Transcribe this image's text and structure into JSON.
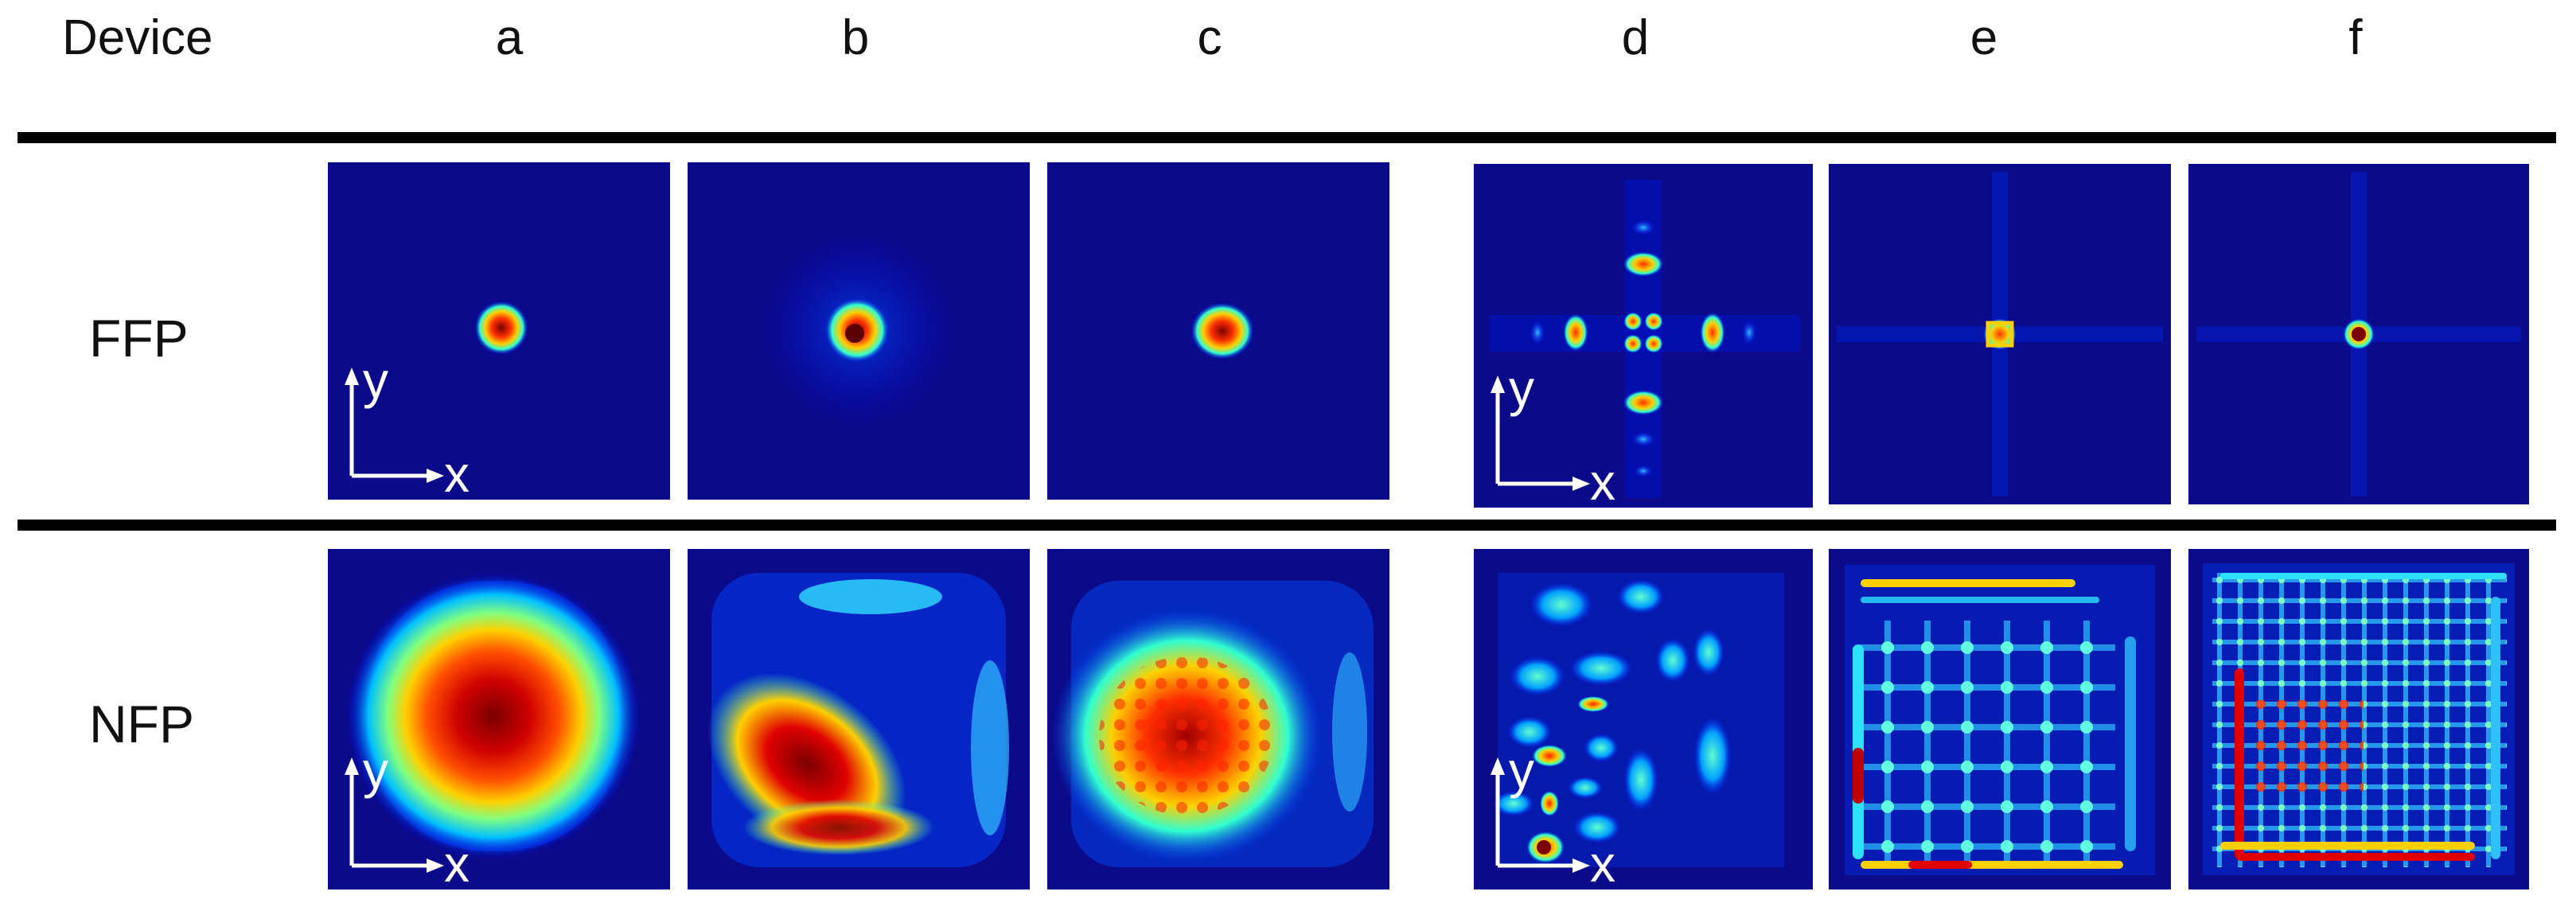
{
  "header": {
    "device_label": "Device",
    "columns": [
      "a",
      "b",
      "c",
      "d",
      "e",
      "f"
    ]
  },
  "rows": [
    {
      "label": "FFP",
      "axis": {
        "y": "y",
        "x": "x"
      }
    },
    {
      "label": "NFP",
      "axis": {
        "y": "y",
        "x": "x"
      }
    }
  ],
  "colormap": {
    "name": "jet",
    "background": "#0a0a8a",
    "stops": [
      "#00008f",
      "#0000ff",
      "#00a0ff",
      "#30ffd0",
      "#c8ff30",
      "#ffd000",
      "#ff3000",
      "#7a0000"
    ]
  }
}
